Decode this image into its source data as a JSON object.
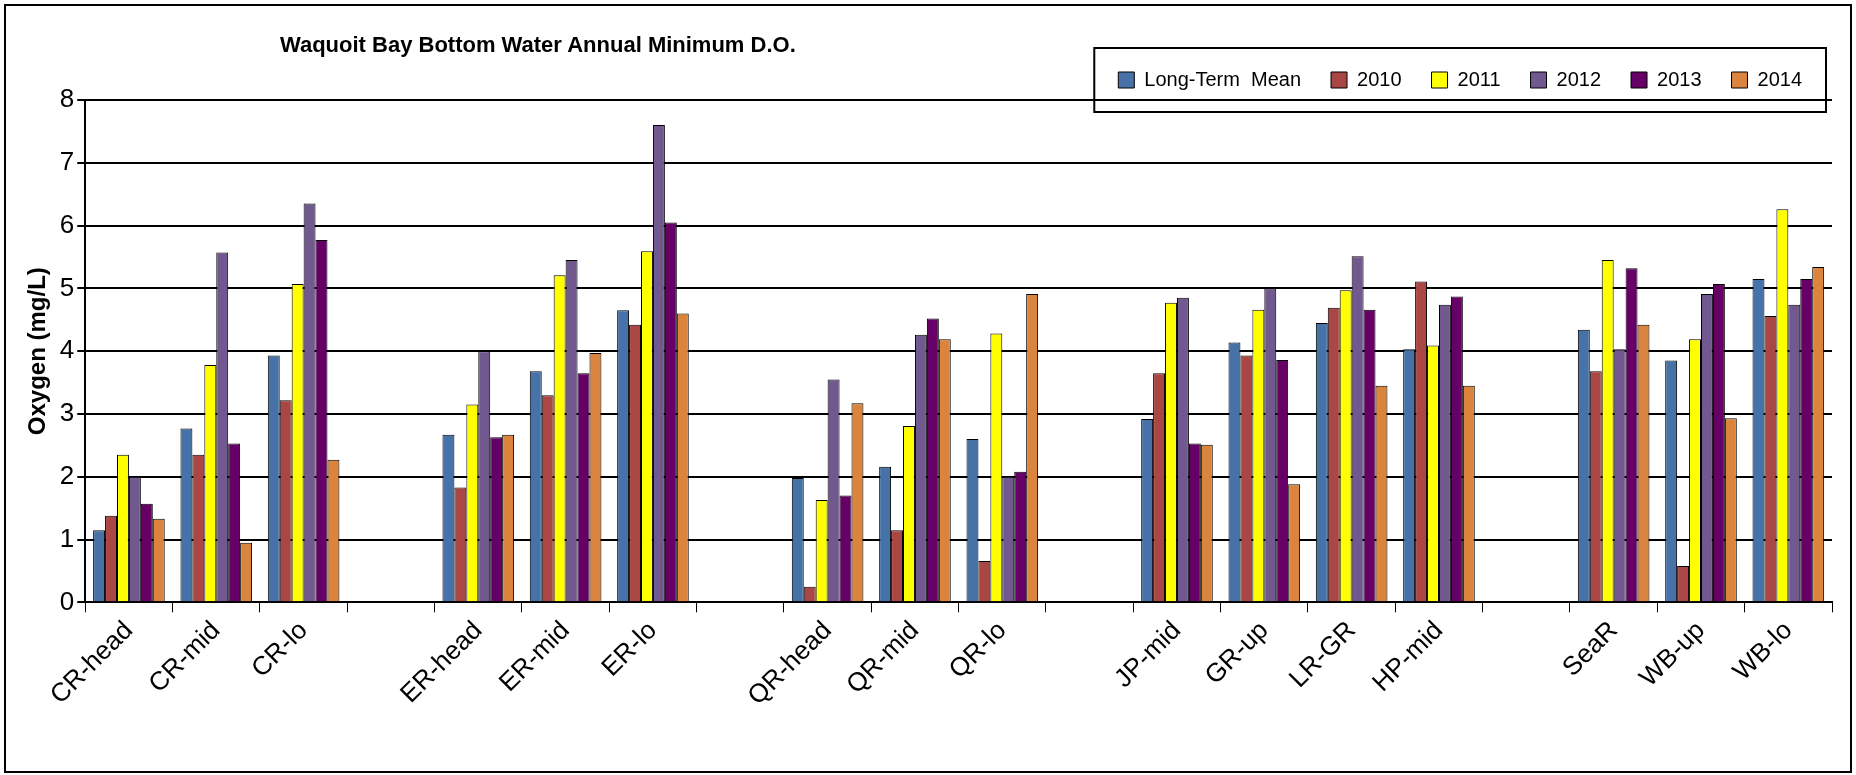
{
  "chart_data": {
    "type": "bar",
    "title": "Waquoit Bay Bottom Water Annual Minimum D.O.",
    "ylabel": "Oxygen (mg/L)",
    "categories": [
      "CR-head",
      "CR-mid",
      "CR-lo",
      null,
      "ER-head",
      "ER-mid",
      "ER-lo",
      null,
      "QR-head",
      "QR-mid",
      "QR-lo",
      null,
      "JP-mid",
      "GR-up",
      "LR-GR",
      "HP-mid",
      null,
      "SeaR",
      "WB-up",
      "WB-lo"
    ],
    "series": [
      {
        "name": "Long-Term  Mean",
        "color": "#4672a8",
        "values": [
          1.15,
          2.77,
          3.93,
          null,
          2.67,
          3.68,
          4.65,
          null,
          1.98,
          2.16,
          2.6,
          null,
          2.92,
          4.14,
          4.45,
          4.03,
          null,
          4.34,
          3.85,
          5.15
        ]
      },
      {
        "name": "2010",
        "color": "#aa4643",
        "values": [
          1.38,
          2.35,
          3.22,
          null,
          1.83,
          3.3,
          4.42,
          null,
          0.25,
          1.15,
          0.66,
          null,
          3.65,
          3.93,
          4.69,
          5.11,
          null,
          3.68,
          0.58,
          4.56
        ]
      },
      {
        "name": "2011",
        "color": "#ffff00",
        "values": [
          2.35,
          3.78,
          5.07,
          null,
          3.15,
          5.21,
          5.59,
          null,
          1.63,
          2.81,
          4.28,
          null,
          4.77,
          4.66,
          4.97,
          4.09,
          null,
          5.45,
          4.19,
          6.26
        ]
      },
      {
        "name": "2012",
        "color": "#71588f",
        "values": [
          2.0,
          5.57,
          6.35,
          null,
          4.0,
          5.45,
          7.6,
          null,
          3.55,
          4.26,
          2.0,
          null,
          4.85,
          5.0,
          5.51,
          4.74,
          null,
          4.03,
          4.91,
          4.74
        ]
      },
      {
        "name": "2013",
        "color": "#660066",
        "values": [
          1.57,
          2.53,
          5.77,
          null,
          2.63,
          3.65,
          6.05,
          null,
          1.7,
          4.52,
          2.08,
          null,
          2.53,
          3.86,
          4.66,
          4.87,
          null,
          5.32,
          5.07,
          5.15
        ]
      },
      {
        "name": "2014",
        "color": "#db843d",
        "values": [
          1.33,
          0.95,
          2.27,
          null,
          2.67,
          3.97,
          4.6,
          null,
          3.17,
          4.19,
          4.91,
          null,
          2.51,
          1.88,
          3.45,
          3.45,
          null,
          4.42,
          2.93,
          5.34
        ]
      }
    ],
    "ylim": [
      0,
      8
    ],
    "yticks": [
      0,
      1,
      2,
      3,
      4,
      5,
      6,
      7,
      8
    ],
    "grid": "y",
    "legend": "top right"
  }
}
